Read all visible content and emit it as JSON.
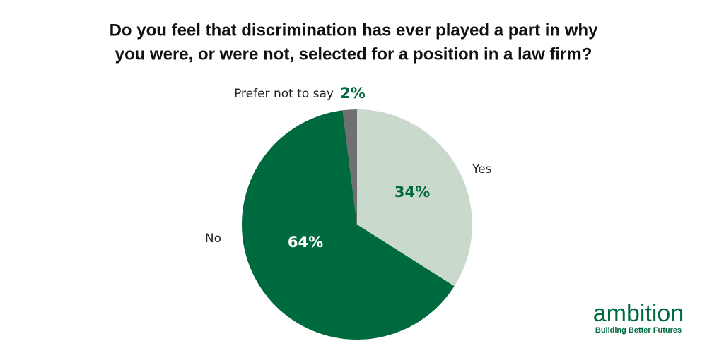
{
  "chart_data": {
    "type": "pie",
    "title": [
      "Do you feel that discrimination has ever played a part in why",
      "you were, or were not, selected for a position in a law firm?"
    ],
    "categories": [
      "Yes",
      "No",
      "Prefer not to say"
    ],
    "values": [
      34,
      64,
      2
    ],
    "value_labels": [
      "34%",
      "64%",
      "2%"
    ],
    "colors": [
      "#c9dacd",
      "#006a3f",
      "#707070"
    ],
    "value_label_colors": [
      "#006a3f",
      "#ffffff",
      "#006a3f"
    ]
  },
  "logo": {
    "name": "ambition",
    "tagline": "Building Better Futures"
  }
}
